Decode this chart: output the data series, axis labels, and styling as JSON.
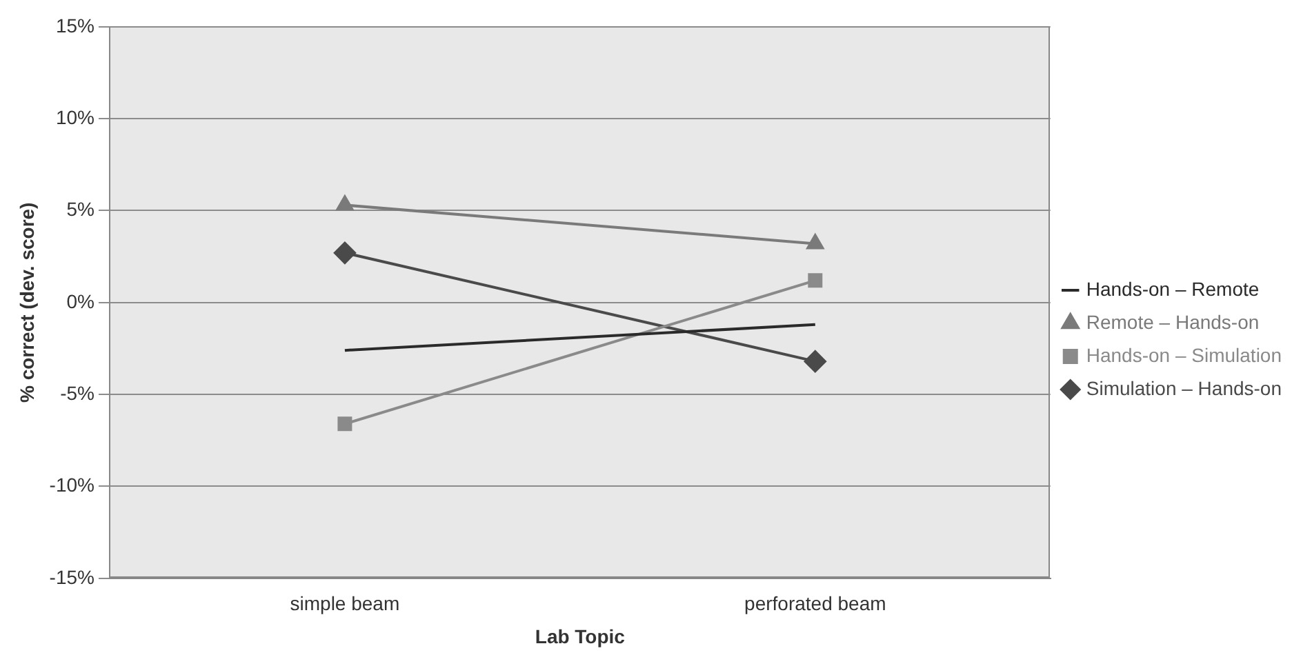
{
  "chart_data": {
    "type": "line",
    "xlabel": "Lab Topic",
    "ylabel": "% correct (dev. score)",
    "categories": [
      "simple beam",
      "perforated beam"
    ],
    "series": [
      {
        "name": "Hands-on – Remote",
        "color": "#2a2a2a",
        "values": [
          -2.6,
          -1.2
        ],
        "marker": "none"
      },
      {
        "name": "Remote – Hands-on",
        "color": "#7a7a7a",
        "values": [
          5.3,
          3.2
        ],
        "marker": "triangle"
      },
      {
        "name": "Hands-on – Simulation",
        "color": "#8a8a8a",
        "values": [
          -6.6,
          1.2
        ],
        "marker": "square"
      },
      {
        "name": "Simulation – Hands-on",
        "color": "#4a4a4a",
        "values": [
          2.7,
          -3.2
        ],
        "marker": "diamond"
      }
    ],
    "ylim": [
      -15,
      15
    ],
    "yticks": [
      {
        "value": -15,
        "label": "-15%"
      },
      {
        "value": -10,
        "label": "-10%"
      },
      {
        "value": -5,
        "label": "-5%"
      },
      {
        "value": 0,
        "label": "0%"
      },
      {
        "value": 5,
        "label": "5%"
      },
      {
        "value": 10,
        "label": "10%"
      },
      {
        "value": 15,
        "label": "15%"
      }
    ],
    "grid": "y",
    "legend": "right",
    "line_style": "solid"
  }
}
